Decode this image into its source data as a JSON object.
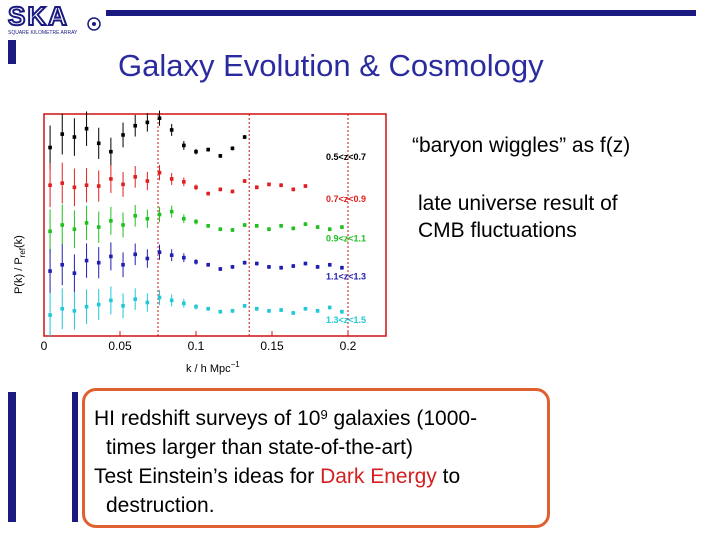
{
  "slide": {
    "logo_text": "SKA",
    "logo_subtext": "SQUARE KILOMETRE ARRAY",
    "title": "Galaxy Evolution & Cosmology",
    "note1": "“baryon wiggles” as f(z)",
    "note2_line1": "late universe result of",
    "note2_line2": "CMB fluctuations",
    "box": {
      "line1_pre": "HI redshift surveys of 10",
      "line1_sup": "9",
      "line1_post": " galaxies (1000-",
      "line2": "times larger than state-of-the-art)",
      "line3_pre": "Test Einstein’s ideas for ",
      "line3_highlight": "Dark Energy",
      "line3_post": " to",
      "line4": "destruction."
    },
    "colors": {
      "accent": "#1a1a80",
      "title": "#2b2ba0",
      "box_border": "#e06030",
      "highlight": "#d42020"
    }
  },
  "chart_data": {
    "type": "scatter",
    "xlabel": "k / h Mpc",
    "xlabel_sup": "−1",
    "ylabel": "P(k) / P",
    "ylabel_sub": "ref",
    "ylabel_tail": "(k)",
    "xlim": [
      0,
      0.225
    ],
    "xticks": [
      "0",
      "0.05",
      "0.1",
      "0.15",
      "0.2"
    ],
    "xtick_values": [
      0,
      0.05,
      0.1,
      0.15,
      0.2
    ],
    "vlines": [
      0.075,
      0.135,
      0.2
    ],
    "series": [
      {
        "name": "0.5<z<0.7",
        "color": "#000000",
        "offset": 4.2,
        "x": [
          0.004,
          0.012,
          0.02,
          0.028,
          0.036,
          0.044,
          0.052,
          0.06,
          0.068,
          0.076,
          0.084,
          0.092,
          0.1,
          0.108,
          0.116,
          0.124,
          0.132
        ],
        "y": [
          0.3,
          0.62,
          0.55,
          0.75,
          0.4,
          0.2,
          0.6,
          0.82,
          0.9,
          1.0,
          0.72,
          0.35,
          0.2,
          0.25,
          0.1,
          0.28,
          0.55
        ]
      },
      {
        "name": "0.7<z<0.9",
        "color": "#e02020",
        "offset": 3.2,
        "x": [
          0.004,
          0.012,
          0.02,
          0.028,
          0.036,
          0.044,
          0.052,
          0.06,
          0.068,
          0.076,
          0.084,
          0.092,
          0.1,
          0.108,
          0.116,
          0.124,
          0.132,
          0.14,
          0.148,
          0.156,
          0.164,
          0.172
        ],
        "y": [
          0.4,
          0.45,
          0.35,
          0.4,
          0.38,
          0.55,
          0.42,
          0.6,
          0.5,
          0.7,
          0.55,
          0.48,
          0.35,
          0.2,
          0.3,
          0.25,
          0.5,
          0.35,
          0.42,
          0.4,
          0.3,
          0.38
        ]
      },
      {
        "name": "0.9<z<1.1",
        "color": "#20c020",
        "offset": 2.25,
        "x": [
          0.004,
          0.012,
          0.02,
          0.028,
          0.036,
          0.044,
          0.052,
          0.06,
          0.068,
          0.076,
          0.084,
          0.092,
          0.1,
          0.108,
          0.116,
          0.124,
          0.132,
          0.14,
          0.148,
          0.156,
          0.164,
          0.172,
          0.18,
          0.188,
          0.196
        ],
        "y": [
          0.25,
          0.4,
          0.3,
          0.45,
          0.35,
          0.5,
          0.4,
          0.62,
          0.55,
          0.65,
          0.72,
          0.55,
          0.48,
          0.38,
          0.3,
          0.28,
          0.4,
          0.38,
          0.3,
          0.38,
          0.32,
          0.42,
          0.35,
          0.3,
          0.35
        ]
      },
      {
        "name": "1.1<z<1.3",
        "color": "#2020b0",
        "offset": 1.35,
        "x": [
          0.004,
          0.012,
          0.02,
          0.028,
          0.036,
          0.044,
          0.052,
          0.06,
          0.068,
          0.076,
          0.084,
          0.092,
          0.1,
          0.108,
          0.116,
          0.124,
          0.132,
          0.14,
          0.148,
          0.156,
          0.164,
          0.172,
          0.18,
          0.188,
          0.196
        ],
        "y": [
          0.2,
          0.35,
          0.15,
          0.45,
          0.4,
          0.55,
          0.35,
          0.6,
          0.5,
          0.65,
          0.58,
          0.52,
          0.42,
          0.35,
          0.25,
          0.3,
          0.4,
          0.38,
          0.3,
          0.28,
          0.32,
          0.38,
          0.3,
          0.35,
          0.28
        ]
      },
      {
        "name": "1.3<z<1.5",
        "color": "#20c8d8",
        "offset": 0.3,
        "x": [
          0.004,
          0.012,
          0.02,
          0.028,
          0.036,
          0.044,
          0.052,
          0.06,
          0.068,
          0.076,
          0.084,
          0.092,
          0.1,
          0.108,
          0.116,
          0.124,
          0.132,
          0.14,
          0.148,
          0.156,
          0.164,
          0.172,
          0.18,
          0.188,
          0.196
        ],
        "y": [
          0.2,
          0.35,
          0.3,
          0.4,
          0.45,
          0.55,
          0.42,
          0.58,
          0.5,
          0.62,
          0.55,
          0.48,
          0.4,
          0.35,
          0.28,
          0.3,
          0.42,
          0.35,
          0.3,
          0.32,
          0.25,
          0.35,
          0.3,
          0.38,
          0.28
        ]
      }
    ]
  }
}
